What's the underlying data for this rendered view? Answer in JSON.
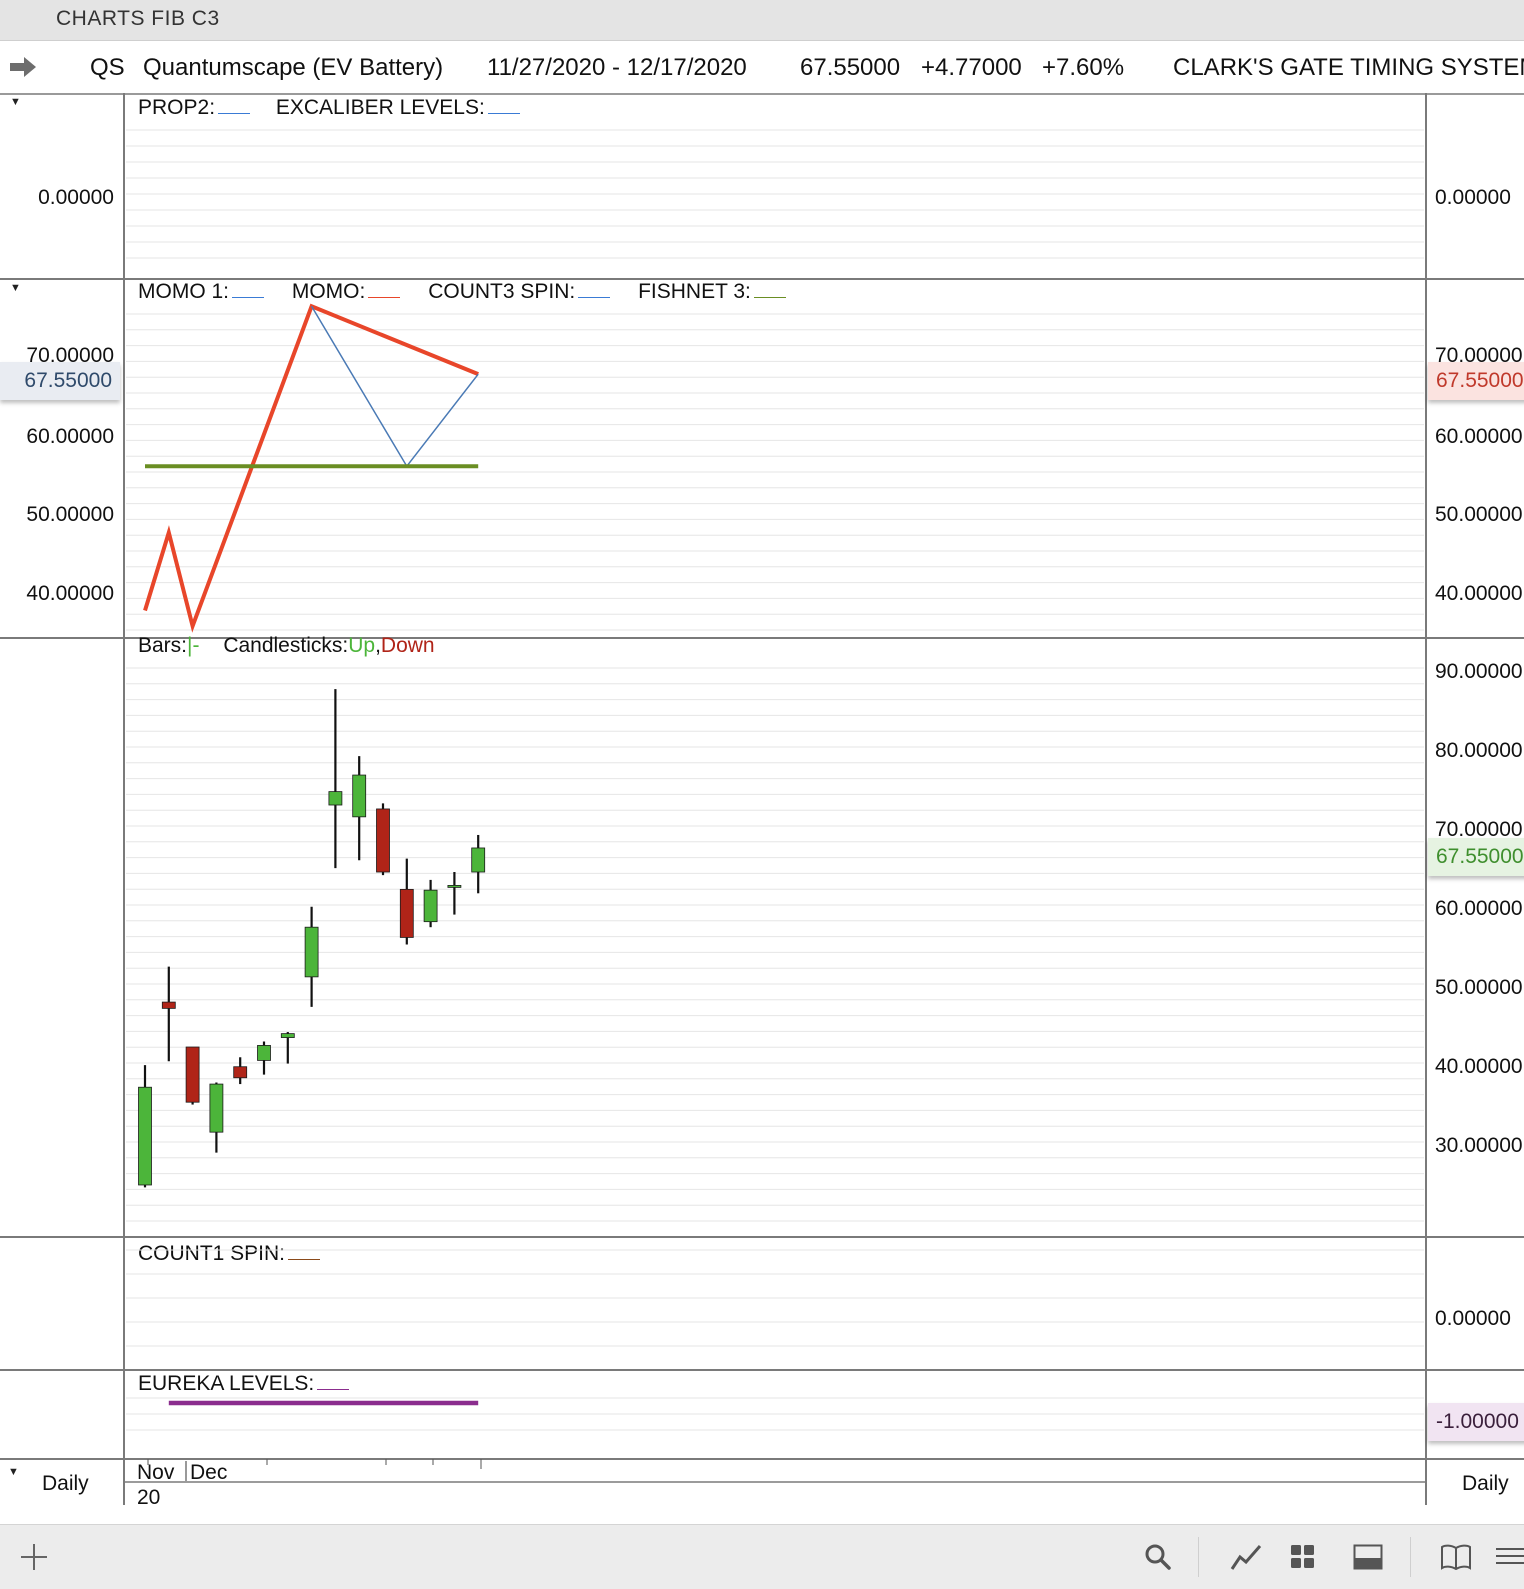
{
  "window": {
    "title": "CHARTS FIB C3"
  },
  "header": {
    "symbol": "QS",
    "name": "Quantumscape (EV Battery)",
    "date_range": "11/27/2020 - 12/17/2020",
    "last": "67.55000",
    "change": "+4.77000",
    "change_pct": "+7.60%",
    "system": "CLARK'S GATE TIMING SYSTEM"
  },
  "panel1": {
    "labels": [
      "PROP2:",
      "EXCALIBER LEVELS:"
    ],
    "label_colors": [
      "#3a7bd5",
      "#3a7bd5"
    ],
    "tick": "0.00000"
  },
  "panel2": {
    "labels": [
      "MOMO 1:",
      "MOMO:",
      "COUNT3 SPIN:",
      "FISHNET 3:"
    ],
    "label_colors": [
      "#3a7bd5",
      "#e8462a",
      "#3a7bd5",
      "#6a8e23"
    ],
    "ticks": [
      "70.00000",
      "60.00000",
      "50.00000",
      "40.00000"
    ],
    "badge_left": "67.55000",
    "badge_right": "67.55000"
  },
  "panel3": {
    "bars_label": "Bars:",
    "bars_glyph": "|-",
    "candles_label": "Candlesticks:",
    "up_label": "Up",
    "comma": ",",
    "down_label": "Down",
    "ticks": [
      "90.00000",
      "80.00000",
      "70.00000",
      "60.00000",
      "50.00000",
      "40.00000",
      "30.00000"
    ],
    "badge_right": "67.55000"
  },
  "panel4": {
    "labels": [
      "COUNT1 SPIN:"
    ],
    "label_colors": [
      "#8b4a1a"
    ],
    "tick": "0.00000"
  },
  "panel5": {
    "labels": [
      "EUREKA LEVELS:"
    ],
    "label_colors": [
      "#8b2d8e"
    ],
    "badge": "-1.00000"
  },
  "xaxis": {
    "month1": "Nov",
    "month2": "Dec",
    "year": "20",
    "period_left": "Daily",
    "period_right": "Daily"
  },
  "colors": {
    "up": "#4cb53a",
    "down": "#b02418",
    "momo": "#e8462a",
    "momo1": "#4a7ab5",
    "fishnet": "#6a8e23",
    "eureka": "#8b2d8e"
  },
  "chart_data": [
    {
      "type": "line",
      "panel": "MOMO",
      "x": [
        "11/27/2020",
        "11/30/2020",
        "12/01/2020",
        "12/02/2020",
        "12/03/2020",
        "12/04/2020",
        "12/07/2020",
        "12/08/2020",
        "12/09/2020",
        "12/10/2020",
        "12/11/2020",
        "12/14/2020",
        "12/15/2020",
        "12/16/2020",
        "12/17/2020"
      ],
      "ylim": [
        35,
        75
      ],
      "series": [
        {
          "name": "MOMO",
          "color": "#e8462a",
          "points": [
            [
              "11/27/2020",
              37.5
            ],
            [
              "11/30/2020",
              47.5
            ],
            [
              "12/01/2020",
              35.5
            ],
            [
              "12/08/2020",
              76.5
            ],
            [
              "12/17/2020",
              67.8
            ]
          ]
        },
        {
          "name": "MOMO 1",
          "color": "#4a7ab5",
          "points": [
            [
              "12/08/2020",
              76.5
            ],
            [
              "12/14/2020",
              56.0
            ],
            [
              "12/17/2020",
              67.8
            ]
          ]
        },
        {
          "name": "FISHNET 3",
          "color": "#6a8e23",
          "points": [
            [
              "11/27/2020",
              56.0
            ],
            [
              "12/17/2020",
              56.0
            ]
          ]
        }
      ]
    },
    {
      "type": "candlestick",
      "panel": "Price",
      "ylim": [
        22,
        92
      ],
      "candles": [
        {
          "date": "11/27/2020",
          "open": 24.8,
          "high": 40.0,
          "low": 24.5,
          "close": 37.2
        },
        {
          "date": "11/30/2020",
          "open": 48.0,
          "high": 52.5,
          "low": 40.5,
          "close": 47.2
        },
        {
          "date": "12/01/2020",
          "open": 42.3,
          "high": 42.3,
          "low": 35.0,
          "close": 35.3
        },
        {
          "date": "12/02/2020",
          "open": 31.5,
          "high": 37.8,
          "low": 28.9,
          "close": 37.6
        },
        {
          "date": "12/03/2020",
          "open": 39.8,
          "high": 41.0,
          "low": 37.6,
          "close": 38.4
        },
        {
          "date": "12/04/2020",
          "open": 40.6,
          "high": 43.0,
          "low": 38.8,
          "close": 42.5
        },
        {
          "date": "12/07/2020",
          "open": 43.5,
          "high": 44.2,
          "low": 40.2,
          "close": 44.0
        },
        {
          "date": "12/08/2020",
          "open": 51.2,
          "high": 60.1,
          "low": 47.4,
          "close": 57.5
        },
        {
          "date": "12/09/2020",
          "open": 73.0,
          "high": 87.7,
          "low": 65.0,
          "close": 74.7
        },
        {
          "date": "12/10/2020",
          "open": 71.5,
          "high": 79.2,
          "low": 66.0,
          "close": 76.8
        },
        {
          "date": "12/11/2020",
          "open": 72.5,
          "high": 73.2,
          "low": 64.1,
          "close": 64.5
        },
        {
          "date": "12/14/2020",
          "open": 62.3,
          "high": 66.2,
          "low": 55.3,
          "close": 56.2
        },
        {
          "date": "12/15/2020",
          "open": 58.2,
          "high": 63.5,
          "low": 57.5,
          "close": 62.2
        },
        {
          "date": "12/16/2020",
          "open": 62.8,
          "high": 64.5,
          "low": 59.1,
          "close": 62.8
        },
        {
          "date": "12/17/2020",
          "open": 64.5,
          "high": 69.2,
          "low": 61.8,
          "close": 67.55
        }
      ]
    },
    {
      "type": "line",
      "panel": "EUREKA LEVELS",
      "series": [
        {
          "name": "EUREKA LEVELS",
          "color": "#8b2d8e",
          "points": [
            [
              "11/30/2020",
              -1.0
            ],
            [
              "12/17/2020",
              -1.0
            ]
          ]
        }
      ]
    }
  ]
}
